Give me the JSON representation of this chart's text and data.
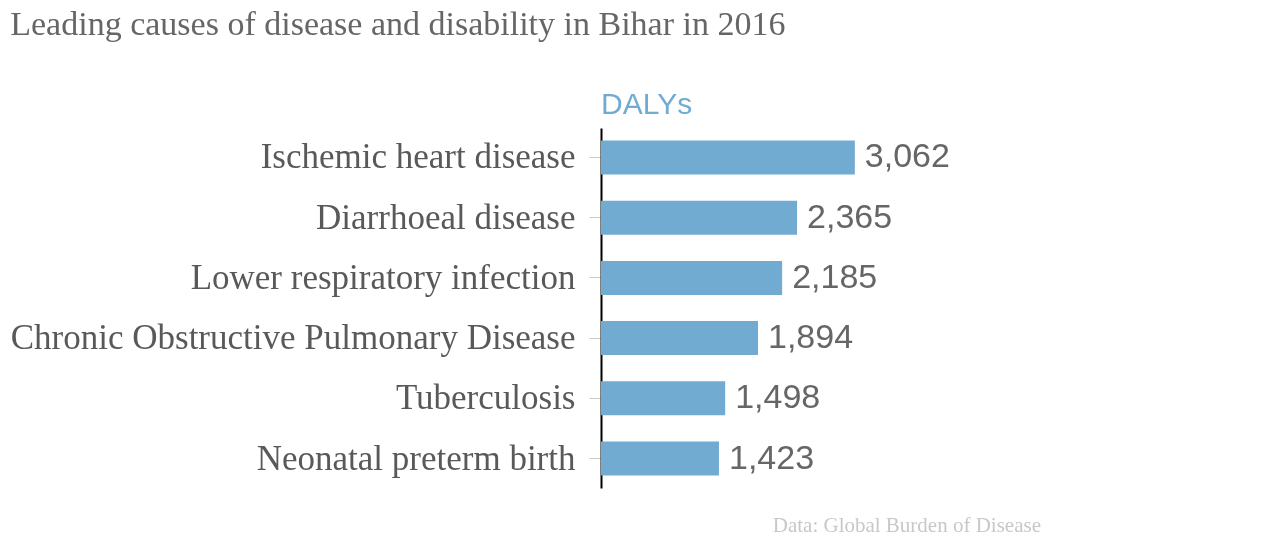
{
  "chart_data": {
    "type": "bar",
    "orientation": "horizontal",
    "title": "Leading causes of disease and disability in Bihar in 2016",
    "categories": [
      "Ischemic heart disease",
      "Diarrhoeal disease",
      "Lower respiratory infection",
      "Chronic Obstructive Pulmonary Disease",
      "Tuberculosis",
      "Neonatal preterm birth"
    ],
    "series": [
      {
        "name": "DALYs",
        "color": "#72abd2",
        "values": [
          3062,
          2365,
          2185,
          1894,
          1498,
          1423
        ],
        "value_labels": [
          "3,062",
          "2,365",
          "2,185",
          "1,894",
          "1,498",
          "1,423"
        ]
      }
    ],
    "annotations": [
      "Data: Global Burden of Disease"
    ]
  }
}
